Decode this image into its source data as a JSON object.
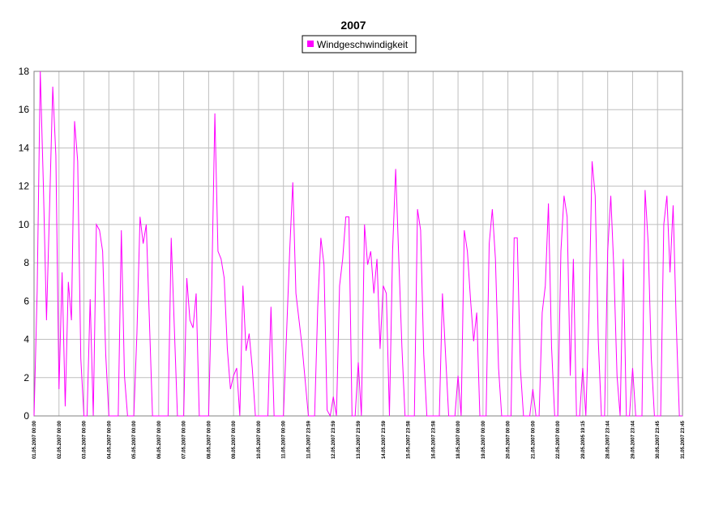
{
  "chart_data": {
    "type": "line",
    "title": "2007",
    "categories": [
      "01.05.2007 00:00",
      null,
      null,
      null,
      null,
      null,
      null,
      null,
      "02.05.2007 00:00",
      null,
      null,
      null,
      null,
      null,
      null,
      null,
      "03.05.2007 00:00",
      null,
      null,
      null,
      null,
      null,
      null,
      null,
      "04.05.2007 00:00",
      null,
      null,
      null,
      null,
      null,
      null,
      null,
      "05.05.2007 00:00",
      null,
      null,
      null,
      null,
      null,
      null,
      null,
      "06.05.2007 00:00",
      null,
      null,
      null,
      null,
      null,
      null,
      null,
      "07.05.2007 00:00",
      null,
      null,
      null,
      null,
      null,
      null,
      null,
      "08.05.2007 00:00",
      null,
      null,
      null,
      null,
      null,
      null,
      null,
      "09.05.2007 00:00",
      null,
      null,
      null,
      null,
      null,
      null,
      null,
      "10.05.2007 00:00",
      null,
      null,
      null,
      null,
      null,
      null,
      null,
      "11.05.2007 00:00",
      null,
      null,
      null,
      null,
      null,
      null,
      null,
      "11.05.2007 23:59",
      null,
      null,
      null,
      null,
      null,
      null,
      null,
      "12.05.2007 23:59",
      null,
      null,
      null,
      null,
      null,
      null,
      null,
      "13.05.2007 23:59",
      null,
      null,
      null,
      null,
      null,
      null,
      null,
      "14.05.2007 23:59",
      null,
      null,
      null,
      null,
      null,
      null,
      null,
      "15.05.2007 23:58",
      null,
      null,
      null,
      null,
      null,
      null,
      null,
      "16.05.2007 23:58",
      null,
      null,
      null,
      null,
      null,
      null,
      null,
      "18.05.2007 00:00",
      null,
      null,
      null,
      null,
      null,
      null,
      null,
      "19.05.2007 00:00",
      null,
      null,
      null,
      null,
      null,
      null,
      null,
      "20.05.2007 00:00",
      null,
      null,
      null,
      null,
      null,
      null,
      null,
      "21.05.2007 00:00",
      null,
      null,
      null,
      null,
      null,
      null,
      null,
      "22.05.2007 00:00",
      null,
      null,
      null,
      null,
      null,
      null,
      null,
      "29.05.2005 19:15",
      null,
      null,
      null,
      null,
      null,
      null,
      null,
      "28.05.2007 23:44",
      null,
      null,
      null,
      null,
      null,
      null,
      null,
      "29.05.2007 23:44",
      null,
      null,
      null,
      null,
      null,
      null,
      null,
      "30.05.2007 23:45",
      null,
      null,
      null,
      null,
      null,
      null,
      null,
      "31.05.2007 23:45"
    ],
    "series": [
      {
        "name": "Windgeschwindigkeit",
        "color": "#ff00ff",
        "values": [
          0,
          6.5,
          18,
          12,
          5,
          11,
          17.2,
          13.6,
          1.4,
          7.5,
          0.5,
          7,
          5,
          15.4,
          13.3,
          3,
          0,
          0,
          6.1,
          0,
          10,
          9.7,
          8.6,
          3.2,
          0,
          0,
          0,
          0,
          9.7,
          2.1,
          0,
          0,
          0,
          4.3,
          10.4,
          9,
          10,
          5,
          0,
          0,
          0,
          0,
          0,
          0,
          9.3,
          4.6,
          0,
          0,
          0,
          7.2,
          5,
          4.6,
          6.4,
          0,
          0,
          0,
          0,
          6.8,
          15.8,
          8.6,
          8.2,
          7.2,
          3.5,
          1.4,
          2.1,
          2.5,
          0,
          6.8,
          3.4,
          4.3,
          2.5,
          0,
          0,
          0,
          0,
          0,
          5.7,
          0,
          0,
          0,
          0,
          4.3,
          8.6,
          12.2,
          6.4,
          5,
          3.6,
          1.8,
          0,
          0,
          0,
          5.7,
          9.3,
          7.9,
          0.3,
          0,
          1,
          0,
          6.8,
          8.2,
          10.4,
          10.4,
          0,
          0,
          2.8,
          0,
          10,
          7.9,
          8.6,
          6.4,
          8.2,
          3.5,
          6.8,
          6.4,
          0,
          8.6,
          12.9,
          8.2,
          3.6,
          0,
          0,
          0,
          0,
          10.8,
          9.7,
          3.2,
          0,
          0,
          0,
          0,
          0,
          6.4,
          3.2,
          0,
          0,
          0,
          2.1,
          0,
          9.7,
          8.6,
          6.1,
          3.9,
          5.4,
          0,
          0,
          0,
          9,
          10.8,
          8.2,
          2.5,
          0,
          0,
          0,
          0,
          9.3,
          9.3,
          2.5,
          0,
          0,
          0,
          1.4,
          0,
          0,
          5.4,
          6.8,
          11.1,
          3.6,
          0,
          0,
          8.6,
          11.5,
          10.4,
          2.1,
          8.2,
          0,
          0,
          2.5,
          0,
          5.4,
          13.3,
          11.5,
          3.9,
          0,
          0,
          8.6,
          11.5,
          7.6,
          2.1,
          0,
          8.2,
          0,
          0,
          2.5,
          0,
          0,
          0,
          11.8,
          9,
          3,
          0,
          0,
          0,
          10,
          11.5,
          7.5,
          11,
          4.8,
          0,
          0
        ]
      }
    ],
    "ylim": [
      0,
      18
    ],
    "yticks": [
      0,
      2,
      4,
      6,
      8,
      10,
      12,
      14,
      16,
      18
    ],
    "grid": true
  }
}
